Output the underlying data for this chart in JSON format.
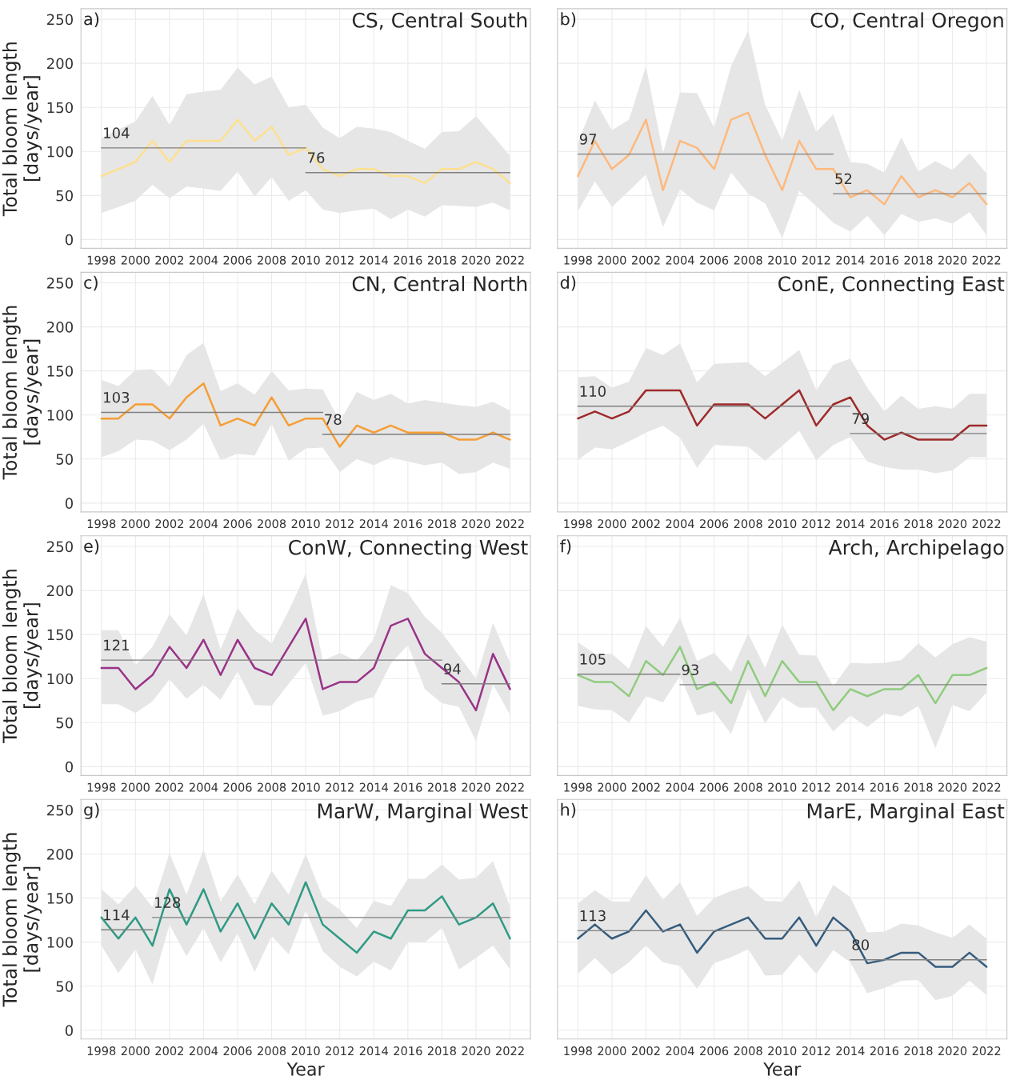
{
  "chart_data": [
    {
      "type": "line",
      "title": "CS, Central South",
      "ylabel": "Total bloom length\n[days/year]",
      "annotations": [
        "a)",
        {
          "text": "104",
          "x": 1998,
          "y": 104
        },
        {
          "text": "76",
          "x": 2010,
          "y": 76
        }
      ],
      "x": [
        1998,
        1999,
        2000,
        2001,
        2002,
        2003,
        2004,
        2005,
        2006,
        2007,
        2008,
        2009,
        2010,
        2011,
        2012,
        2013,
        2014,
        2015,
        2016,
        2017,
        2018,
        2019,
        2020,
        2021,
        2022
      ],
      "series": [
        {
          "color": "#fde08f",
          "values": [
            72,
            80,
            88,
            112,
            88,
            112,
            112,
            112,
            136,
            112,
            128,
            96,
            104,
            80,
            72,
            80,
            80,
            72,
            72,
            64,
            80,
            80,
            88,
            80,
            64
          ],
          "upper": [
            115,
            125,
            134,
            163,
            130,
            165,
            168,
            170,
            195,
            176,
            185,
            150,
            153,
            127,
            115,
            128,
            126,
            122,
            112,
            103,
            122,
            123,
            140,
            118,
            95
          ],
          "lower": [
            30,
            37,
            44,
            62,
            47,
            60,
            58,
            55,
            77,
            49,
            71,
            44,
            56,
            34,
            30,
            33,
            35,
            23,
            34,
            26,
            39,
            38,
            37,
            42,
            33
          ]
        },
        {
          "type": "line",
          "color": "#808080",
          "x": [
            1998,
            2010
          ],
          "values": [
            104,
            104
          ]
        },
        {
          "type": "line",
          "color": "#808080",
          "x": [
            2010,
            2022
          ],
          "values": [
            76,
            76
          ]
        }
      ],
      "xlim": [
        1996.8,
        2023.2
      ],
      "ylim": [
        -10,
        262
      ],
      "xticks": [
        1998,
        2000,
        2002,
        2004,
        2006,
        2008,
        2010,
        2012,
        2014,
        2016,
        2018,
        2020,
        2022
      ],
      "yticks": [
        0,
        50,
        100,
        150,
        200,
        250
      ],
      "grid": true
    },
    {
      "type": "line",
      "title": "CO, Central Oregon",
      "annotations": [
        "b)",
        {
          "text": "97",
          "x": 1998,
          "y": 97
        },
        {
          "text": "52",
          "x": 2013,
          "y": 52
        }
      ],
      "x": [
        1998,
        1999,
        2000,
        2001,
        2002,
        2003,
        2004,
        2005,
        2006,
        2007,
        2008,
        2009,
        2010,
        2011,
        2012,
        2013,
        2014,
        2015,
        2016,
        2017,
        2018,
        2019,
        2020,
        2021,
        2022
      ],
      "series": [
        {
          "color": "#fdb97d",
          "values": [
            72,
            112,
            80,
            96,
            136,
            56,
            112,
            104,
            80,
            136,
            144,
            96,
            56,
            112,
            80,
            80,
            48,
            56,
            40,
            72,
            48,
            56,
            48,
            64,
            40
          ],
          "upper": [
            110,
            158,
            124,
            136,
            197,
            98,
            167,
            166,
            127,
            197,
            237,
            153,
            112,
            170,
            122,
            142,
            88,
            86,
            76,
            116,
            77,
            89,
            79,
            98,
            75
          ],
          "lower": [
            32,
            66,
            37,
            55,
            74,
            14,
            57,
            42,
            33,
            76,
            52,
            41,
            2,
            55,
            38,
            19,
            9,
            27,
            5,
            29,
            20,
            24,
            18,
            31,
            5
          ]
        },
        {
          "type": "line",
          "color": "#808080",
          "x": [
            1998,
            2013
          ],
          "values": [
            97,
            97
          ]
        },
        {
          "type": "line",
          "color": "#808080",
          "x": [
            2013,
            2022
          ],
          "values": [
            52,
            52
          ]
        }
      ],
      "xlim": [
        1996.8,
        2023.2
      ],
      "ylim": [
        -10,
        262
      ],
      "xticks": [
        1998,
        2000,
        2002,
        2004,
        2006,
        2008,
        2010,
        2012,
        2014,
        2016,
        2018,
        2020,
        2022
      ],
      "yticks": [
        0,
        50,
        100,
        150,
        200,
        250
      ],
      "grid": true,
      "tick_labels": "x"
    },
    {
      "type": "line",
      "title": "CN, Central North",
      "ylabel": "Total bloom length\n[days/year]",
      "annotations": [
        "c)",
        {
          "text": "103",
          "x": 1998,
          "y": 103
        },
        {
          "text": "78",
          "x": 2011,
          "y": 78
        }
      ],
      "x": [
        1998,
        1999,
        2000,
        2001,
        2002,
        2003,
        2004,
        2005,
        2006,
        2007,
        2008,
        2009,
        2010,
        2011,
        2012,
        2013,
        2014,
        2015,
        2016,
        2017,
        2018,
        2019,
        2020,
        2021,
        2022
      ],
      "series": [
        {
          "color": "#f59e35",
          "values": [
            96,
            96,
            112,
            112,
            96,
            120,
            136,
            88,
            96,
            88,
            120,
            88,
            96,
            96,
            64,
            88,
            80,
            88,
            80,
            80,
            80,
            72,
            72,
            80,
            72
          ],
          "upper": [
            140,
            133,
            151,
            152,
            132,
            168,
            182,
            127,
            136,
            123,
            150,
            128,
            130,
            129,
            93,
            126,
            117,
            124,
            113,
            117,
            114,
            111,
            109,
            115,
            105
          ],
          "lower": [
            52,
            59,
            72,
            71,
            60,
            72,
            90,
            49,
            56,
            54,
            90,
            48,
            62,
            63,
            35,
            50,
            43,
            52,
            47,
            43,
            46,
            33,
            35,
            46,
            39
          ]
        },
        {
          "type": "line",
          "color": "#808080",
          "x": [
            1998,
            2011
          ],
          "values": [
            103,
            103
          ]
        },
        {
          "type": "line",
          "color": "#808080",
          "x": [
            2011,
            2022
          ],
          "values": [
            78,
            78
          ]
        }
      ],
      "xlim": [
        1996.8,
        2023.2
      ],
      "ylim": [
        -10,
        262
      ],
      "xticks": [
        1998,
        2000,
        2002,
        2004,
        2006,
        2008,
        2010,
        2012,
        2014,
        2016,
        2018,
        2020,
        2022
      ],
      "yticks": [
        0,
        50,
        100,
        150,
        200,
        250
      ],
      "grid": true
    },
    {
      "type": "line",
      "title": "ConE, Connecting East",
      "annotations": [
        "d)",
        {
          "text": "110",
          "x": 1998,
          "y": 110
        },
        {
          "text": "79",
          "x": 2014,
          "y": 79
        }
      ],
      "x": [
        1998,
        1999,
        2000,
        2001,
        2002,
        2003,
        2004,
        2005,
        2006,
        2007,
        2008,
        2009,
        2010,
        2011,
        2012,
        2013,
        2014,
        2015,
        2016,
        2017,
        2018,
        2019,
        2020,
        2021,
        2022
      ],
      "series": [
        {
          "color": "#9e2a2b",
          "values": [
            96,
            104,
            96,
            104,
            128,
            128,
            128,
            88,
            112,
            112,
            112,
            96,
            112,
            128,
            88,
            112,
            120,
            88,
            72,
            80,
            72,
            72,
            72,
            88,
            88
          ],
          "upper": [
            143,
            144,
            131,
            138,
            176,
            168,
            181,
            137,
            158,
            159,
            160,
            144,
            159,
            174,
            128,
            157,
            164,
            131,
            104,
            122,
            107,
            110,
            107,
            124,
            124
          ],
          "lower": [
            49,
            63,
            61,
            70,
            80,
            88,
            74,
            40,
            66,
            65,
            64,
            48,
            65,
            82,
            49,
            66,
            75,
            47,
            41,
            38,
            38,
            34,
            37,
            52,
            52
          ]
        },
        {
          "type": "line",
          "color": "#808080",
          "x": [
            1998,
            2014
          ],
          "values": [
            110,
            110
          ]
        },
        {
          "type": "line",
          "color": "#808080",
          "x": [
            2014,
            2022
          ],
          "values": [
            79,
            79
          ]
        }
      ],
      "xlim": [
        1996.8,
        2023.2
      ],
      "ylim": [
        -10,
        262
      ],
      "xticks": [
        1998,
        2000,
        2002,
        2004,
        2006,
        2008,
        2010,
        2012,
        2014,
        2016,
        2018,
        2020,
        2022
      ],
      "yticks": [
        0,
        50,
        100,
        150,
        200,
        250
      ],
      "grid": true,
      "tick_labels": "x"
    },
    {
      "type": "line",
      "title": "ConW, Connecting West",
      "ylabel": "Total bloom length\n[days/year]",
      "annotations": [
        "e)",
        {
          "text": "121",
          "x": 1998,
          "y": 121
        },
        {
          "text": "94",
          "x": 2018,
          "y": 94
        }
      ],
      "x": [
        1998,
        1999,
        2000,
        2001,
        2002,
        2003,
        2004,
        2005,
        2006,
        2007,
        2008,
        2009,
        2010,
        2011,
        2012,
        2013,
        2014,
        2015,
        2016,
        2017,
        2018,
        2019,
        2020,
        2021,
        2022
      ],
      "series": [
        {
          "color": "#993388",
          "values": [
            112,
            112,
            88,
            104,
            136,
            112,
            144,
            104,
            144,
            112,
            104,
            136,
            168,
            88,
            96,
            96,
            112,
            160,
            168,
            128,
            112,
            96,
            64,
            128,
            88
          ],
          "upper": [
            155,
            155,
            115,
            136,
            173,
            149,
            196,
            133,
            180,
            155,
            140,
            177,
            219,
            120,
            129,
            120,
            145,
            206,
            197,
            170,
            152,
            126,
            100,
            163,
            118
          ],
          "lower": [
            71,
            71,
            61,
            74,
            99,
            77,
            93,
            76,
            108,
            70,
            69,
            94,
            118,
            58,
            63,
            74,
            79,
            117,
            138,
            88,
            72,
            68,
            29,
            93,
            59
          ]
        },
        {
          "type": "line",
          "color": "#808080",
          "x": [
            1998,
            2018
          ],
          "values": [
            121,
            121
          ]
        },
        {
          "type": "line",
          "color": "#808080",
          "x": [
            2018,
            2022
          ],
          "values": [
            94,
            94
          ]
        }
      ],
      "xlim": [
        1996.8,
        2023.2
      ],
      "ylim": [
        -10,
        262
      ],
      "xticks": [
        1998,
        2000,
        2002,
        2004,
        2006,
        2008,
        2010,
        2012,
        2014,
        2016,
        2018,
        2020,
        2022
      ],
      "yticks": [
        0,
        50,
        100,
        150,
        200,
        250
      ],
      "grid": true
    },
    {
      "type": "line",
      "title": "Arch, Archipelago",
      "annotations": [
        "f)",
        {
          "text": "105",
          "x": 1998,
          "y": 105
        },
        {
          "text": "93",
          "x": 2004,
          "y": 93
        }
      ],
      "x": [
        1998,
        1999,
        2000,
        2001,
        2002,
        2003,
        2004,
        2005,
        2006,
        2007,
        2008,
        2009,
        2010,
        2011,
        2012,
        2013,
        2014,
        2015,
        2016,
        2017,
        2018,
        2019,
        2020,
        2021,
        2022
      ],
      "series": [
        {
          "color": "#90cc80",
          "values": [
            104,
            96,
            96,
            80,
            120,
            104,
            136,
            88,
            96,
            72,
            120,
            80,
            120,
            96,
            96,
            64,
            88,
            80,
            88,
            88,
            104,
            72,
            104,
            104,
            112
          ],
          "upper": [
            141,
            128,
            128,
            111,
            160,
            136,
            169,
            120,
            129,
            108,
            151,
            112,
            161,
            127,
            126,
            91,
            118,
            117,
            118,
            121,
            140,
            124,
            139,
            147,
            142
          ],
          "lower": [
            69,
            65,
            64,
            50,
            80,
            73,
            103,
            58,
            63,
            37,
            89,
            49,
            79,
            67,
            67,
            40,
            58,
            45,
            60,
            57,
            69,
            21,
            70,
            63,
            84
          ]
        },
        {
          "type": "line",
          "color": "#808080",
          "x": [
            1998,
            2004
          ],
          "values": [
            105,
            105
          ]
        },
        {
          "type": "line",
          "color": "#808080",
          "x": [
            2004,
            2022
          ],
          "values": [
            93,
            93
          ]
        }
      ],
      "xlim": [
        1996.8,
        2023.2
      ],
      "ylim": [
        -10,
        262
      ],
      "xticks": [
        1998,
        2000,
        2002,
        2004,
        2006,
        2008,
        2010,
        2012,
        2014,
        2016,
        2018,
        2020,
        2022
      ],
      "yticks": [
        0,
        50,
        100,
        150,
        200,
        250
      ],
      "grid": true,
      "tick_labels": "x"
    },
    {
      "type": "line",
      "title": "MarW, Marginal West",
      "xlabel": "Year",
      "ylabel": "Total bloom length\n[days/year]",
      "annotations": [
        "g)",
        {
          "text": "114",
          "x": 1998,
          "y": 114
        },
        {
          "text": "128",
          "x": 2001,
          "y": 128
        }
      ],
      "x": [
        1998,
        1999,
        2000,
        2001,
        2002,
        2003,
        2004,
        2005,
        2006,
        2007,
        2008,
        2009,
        2010,
        2011,
        2012,
        2013,
        2014,
        2015,
        2016,
        2017,
        2018,
        2019,
        2020,
        2021,
        2022
      ],
      "series": [
        {
          "color": "#2f9a84",
          "values": [
            128,
            104,
            128,
            96,
            160,
            120,
            160,
            112,
            144,
            104,
            144,
            120,
            168,
            120,
            104,
            88,
            112,
            104,
            136,
            136,
            152,
            120,
            128,
            144,
            104
          ],
          "upper": [
            160,
            143,
            164,
            140,
            201,
            154,
            205,
            146,
            177,
            143,
            181,
            154,
            200,
            151,
            137,
            116,
            147,
            141,
            172,
            172,
            188,
            171,
            173,
            192,
            140
          ],
          "lower": [
            96,
            65,
            92,
            52,
            120,
            84,
            116,
            77,
            110,
            66,
            107,
            86,
            136,
            90,
            72,
            61,
            78,
            68,
            100,
            100,
            116,
            69,
            82,
            96,
            69
          ]
        },
        {
          "type": "line",
          "color": "#808080",
          "x": [
            1998,
            2001
          ],
          "values": [
            114,
            114
          ]
        },
        {
          "type": "line",
          "color": "#808080",
          "x": [
            2001,
            2022
          ],
          "values": [
            128,
            128
          ]
        }
      ],
      "xlim": [
        1996.8,
        2023.2
      ],
      "ylim": [
        -10,
        262
      ],
      "xticks": [
        1998,
        2000,
        2002,
        2004,
        2006,
        2008,
        2010,
        2012,
        2014,
        2016,
        2018,
        2020,
        2022
      ],
      "yticks": [
        0,
        50,
        100,
        150,
        200,
        250
      ],
      "grid": true
    },
    {
      "type": "line",
      "title": "MarE, Marginal East",
      "xlabel": "Year",
      "annotations": [
        "h)",
        {
          "text": "113",
          "x": 1998,
          "y": 113
        },
        {
          "text": "80",
          "x": 2014,
          "y": 80
        }
      ],
      "x": [
        1998,
        1999,
        2000,
        2001,
        2002,
        2003,
        2004,
        2005,
        2006,
        2007,
        2008,
        2009,
        2010,
        2011,
        2012,
        2013,
        2014,
        2015,
        2016,
        2017,
        2018,
        2019,
        2020,
        2021,
        2022
      ],
      "series": [
        {
          "color": "#355c7d",
          "values": [
            104,
            120,
            104,
            112,
            136,
            112,
            120,
            88,
            112,
            120,
            128,
            104,
            104,
            128,
            96,
            128,
            112,
            76,
            80,
            88,
            88,
            72,
            72,
            88,
            72
          ],
          "upper": [
            144,
            159,
            146,
            146,
            176,
            148,
            168,
            130,
            150,
            158,
            164,
            147,
            146,
            170,
            128,
            165,
            151,
            111,
            112,
            121,
            119,
            111,
            105,
            120,
            104
          ],
          "lower": [
            64,
            82,
            63,
            77,
            96,
            77,
            73,
            47,
            76,
            83,
            92,
            62,
            63,
            86,
            64,
            91,
            77,
            42,
            48,
            56,
            57,
            34,
            39,
            56,
            40
          ]
        },
        {
          "type": "line",
          "color": "#808080",
          "x": [
            1998,
            2014
          ],
          "values": [
            113,
            113
          ]
        },
        {
          "type": "line",
          "color": "#808080",
          "x": [
            2014,
            2022
          ],
          "values": [
            80,
            80
          ]
        }
      ],
      "xlim": [
        1996.8,
        2023.2
      ],
      "ylim": [
        -10,
        262
      ],
      "xticks": [
        1998,
        2000,
        2002,
        2004,
        2006,
        2008,
        2010,
        2012,
        2014,
        2016,
        2018,
        2020,
        2022
      ],
      "yticks": [
        0,
        50,
        100,
        150,
        200,
        250
      ],
      "grid": true,
      "tick_labels": "x"
    }
  ]
}
